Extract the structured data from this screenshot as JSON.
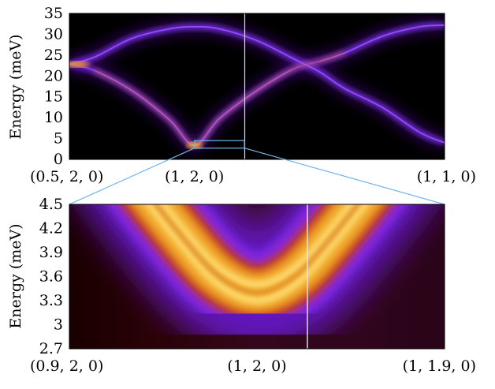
{
  "chart_data": [
    {
      "type": "heatmap",
      "panel": "full-dispersion",
      "ylabel": "Energy (meV)",
      "ylim": [
        0,
        35
      ],
      "yticks": [
        "0",
        "5",
        "10",
        "15",
        "20",
        "25",
        "30",
        "35"
      ],
      "xticks": [
        "(0.5, 2, 0)",
        "(1, 2, 0)",
        "(1, 1, 0)"
      ],
      "x_domain": [
        0,
        1.5
      ],
      "inset_box": {
        "x_range": [
          0.9,
          1.1
        ],
        "y_range": [
          2.7,
          4.5
        ]
      },
      "series": [
        {
          "x": [
            0,
            0.1,
            0.25,
            0.4,
            0.5,
            0.6,
            0.75,
            0.9,
            1.0,
            1.1,
            1.25,
            1.4,
            1.5
          ],
          "y": [
            22.8,
            21.3,
            16.5,
            9.5,
            3.4,
            9.8,
            16.5,
            21.8,
            23.5,
            25.5,
            29.5,
            31.8,
            32.2
          ]
        },
        {
          "x": [
            0,
            0.1,
            0.25,
            0.4,
            0.5,
            0.6,
            0.75,
            0.9,
            1.0,
            1.1,
            1.25,
            1.4,
            1.5
          ],
          "y": [
            22.8,
            24.5,
            29.0,
            31.3,
            31.8,
            31.3,
            28.5,
            24.0,
            21.0,
            17.0,
            12.5,
            6.5,
            4.0
          ]
        }
      ]
    },
    {
      "type": "heatmap",
      "panel": "zoom",
      "ylabel": "Energy (meV)",
      "ylim": [
        2.7,
        4.5
      ],
      "yticks": [
        "2.7",
        "3",
        "3.3",
        "3.6",
        "3.9",
        "4.2",
        "4.5"
      ],
      "xticks": [
        "(0.9, 2, 0)",
        "(1, 2, 0)",
        "(1, 1.9, 0)"
      ],
      "x_domain": [
        0.9,
        1.1
      ],
      "series": [
        {
          "x": [
            0.9,
            0.93,
            0.96,
            0.98,
            1.0,
            1.02,
            1.04,
            1.07,
            1.1
          ],
          "y": [
            6.0,
            5.0,
            4.1,
            3.6,
            3.4,
            3.6,
            4.1,
            5.0,
            6.0
          ]
        }
      ]
    }
  ]
}
